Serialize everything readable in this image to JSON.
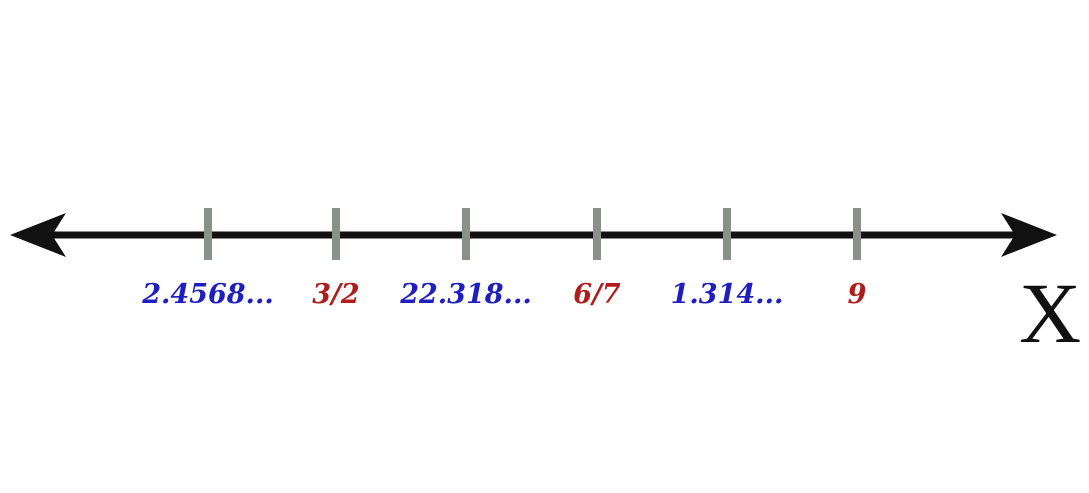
{
  "axis": {
    "name": "X",
    "line_color": "#111111",
    "tick_color": "#8a918b"
  },
  "colors": {
    "irrational": "#1f1fbf",
    "rational": "#b01c1c"
  },
  "ticks": [
    {
      "label": "2.4568...",
      "kind": "irrational"
    },
    {
      "label": "3/2",
      "kind": "rational"
    },
    {
      "label": "22.318...",
      "kind": "irrational"
    },
    {
      "label": "6/7",
      "kind": "rational"
    },
    {
      "label": "1.314...",
      "kind": "irrational"
    },
    {
      "label": "9",
      "kind": "rational"
    }
  ]
}
